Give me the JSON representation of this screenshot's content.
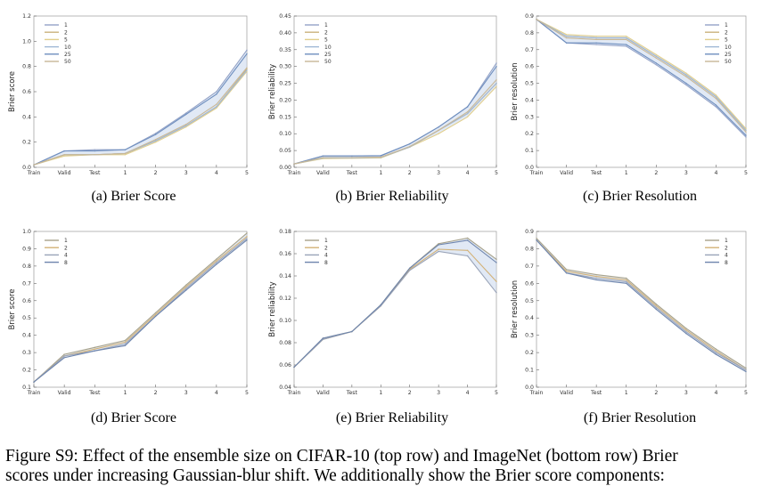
{
  "figure_caption": {
    "line1": "Figure S9: Effect of the ensemble size on CIFAR-10 (top row) and ImageNet (bottom row) Brier",
    "line2": "scores under increasing Gaussian-blur shift.  We additionally show the Brier score components:"
  },
  "colors": {
    "series_cifar": [
      "#94a3c7",
      "#cbb27e",
      "#e2cf8c",
      "#9fb8d6",
      "#6f8fbf",
      "#c8b796"
    ],
    "series_imagenet": [
      "#a7a28b",
      "#d3b277",
      "#9aa4b8",
      "#6e85ad"
    ],
    "axis": "#333333",
    "band": "#c9d7ec"
  },
  "chart_data": [
    {
      "panel": "a",
      "type": "line",
      "caption": "(a)  Brier Score",
      "xlabel": "",
      "ylabel": "Brier score",
      "x": [
        "Train",
        "Valid",
        "Test",
        "1",
        "2",
        "3",
        "4",
        "5"
      ],
      "ylim": [
        0,
        1.2
      ],
      "yticks": [
        "0.0",
        "0.2",
        "0.4",
        "0.6",
        "0.8",
        "1.0",
        "1.2"
      ],
      "legend_position": "top-left",
      "grid": false,
      "series": [
        {
          "name": "1",
          "values": [
            0.02,
            0.13,
            0.14,
            0.14,
            0.27,
            0.43,
            0.6,
            0.93
          ]
        },
        {
          "name": "2",
          "values": [
            0.02,
            0.1,
            0.1,
            0.11,
            0.21,
            0.33,
            0.48,
            0.78
          ]
        },
        {
          "name": "5",
          "values": [
            0.02,
            0.09,
            0.1,
            0.1,
            0.2,
            0.32,
            0.47,
            0.76
          ]
        },
        {
          "name": "10",
          "values": [
            0.02,
            0.1,
            0.1,
            0.11,
            0.21,
            0.33,
            0.48,
            0.77
          ]
        },
        {
          "name": "25",
          "values": [
            0.02,
            0.13,
            0.13,
            0.14,
            0.26,
            0.42,
            0.58,
            0.9
          ]
        },
        {
          "name": "50",
          "values": [
            0.02,
            0.1,
            0.1,
            0.11,
            0.22,
            0.34,
            0.5,
            0.79
          ]
        }
      ]
    },
    {
      "panel": "b",
      "type": "line",
      "caption": "(b)  Brier Reliability",
      "xlabel": "",
      "ylabel": "Brier reliability",
      "x": [
        "Train",
        "Valid",
        "Test",
        "1",
        "2",
        "3",
        "4",
        "5"
      ],
      "ylim": [
        0,
        0.45
      ],
      "yticks": [
        "0.00",
        "0.05",
        "0.10",
        "0.15",
        "0.20",
        "0.25",
        "0.30",
        "0.35",
        "0.40",
        "0.45"
      ],
      "legend_position": "top-left",
      "grid": false,
      "series": [
        {
          "name": "1",
          "values": [
            0.01,
            0.034,
            0.034,
            0.034,
            0.07,
            0.12,
            0.18,
            0.31
          ]
        },
        {
          "name": "2",
          "values": [
            0.01,
            0.028,
            0.029,
            0.03,
            0.06,
            0.11,
            0.16,
            0.25
          ]
        },
        {
          "name": "5",
          "values": [
            0.01,
            0.026,
            0.027,
            0.028,
            0.06,
            0.1,
            0.15,
            0.24
          ]
        },
        {
          "name": "10",
          "values": [
            0.01,
            0.028,
            0.028,
            0.029,
            0.06,
            0.11,
            0.16,
            0.25
          ]
        },
        {
          "name": "25",
          "values": [
            0.01,
            0.034,
            0.034,
            0.035,
            0.07,
            0.12,
            0.18,
            0.3
          ]
        },
        {
          "name": "50",
          "values": [
            0.01,
            0.029,
            0.029,
            0.03,
            0.062,
            0.11,
            0.165,
            0.26
          ]
        }
      ]
    },
    {
      "panel": "c",
      "type": "line",
      "caption": "(c)  Brier Resolution",
      "xlabel": "",
      "ylabel": "Brier resolution",
      "x": [
        "Train",
        "Valid",
        "Test",
        "1",
        "2",
        "3",
        "4",
        "5"
      ],
      "ylim": [
        0,
        0.9
      ],
      "yticks": [
        "0.0",
        "0.1",
        "0.2",
        "0.3",
        "0.4",
        "0.5",
        "0.6",
        "0.7",
        "0.8",
        "0.9"
      ],
      "legend_position": "top-right",
      "grid": false,
      "series": [
        {
          "name": "1",
          "values": [
            0.88,
            0.74,
            0.73,
            0.72,
            0.61,
            0.49,
            0.36,
            0.18
          ]
        },
        {
          "name": "2",
          "values": [
            0.88,
            0.78,
            0.77,
            0.77,
            0.66,
            0.55,
            0.42,
            0.22
          ]
        },
        {
          "name": "5",
          "values": [
            0.88,
            0.79,
            0.78,
            0.78,
            0.67,
            0.56,
            0.43,
            0.23
          ]
        },
        {
          "name": "10",
          "values": [
            0.88,
            0.78,
            0.77,
            0.77,
            0.66,
            0.55,
            0.42,
            0.22
          ]
        },
        {
          "name": "25",
          "values": [
            0.88,
            0.74,
            0.74,
            0.73,
            0.62,
            0.5,
            0.37,
            0.19
          ]
        },
        {
          "name": "50",
          "values": [
            0.88,
            0.77,
            0.76,
            0.76,
            0.65,
            0.54,
            0.41,
            0.21
          ]
        }
      ]
    },
    {
      "panel": "d",
      "type": "line",
      "caption": "(d)  Brier Score",
      "xlabel": "",
      "ylabel": "Brier score",
      "x": [
        "Train",
        "Valid",
        "Test",
        "1",
        "2",
        "3",
        "4",
        "5"
      ],
      "ylim": [
        0.1,
        1.0
      ],
      "yticks": [
        "0.1",
        "0.2",
        "0.3",
        "0.4",
        "0.5",
        "0.6",
        "0.7",
        "0.8",
        "0.9",
        "1.0"
      ],
      "legend_position": "top-left",
      "grid": false,
      "series": [
        {
          "name": "1",
          "values": [
            0.13,
            0.29,
            0.33,
            0.37,
            0.53,
            0.69,
            0.84,
            0.99
          ]
        },
        {
          "name": "2",
          "values": [
            0.13,
            0.28,
            0.32,
            0.36,
            0.52,
            0.68,
            0.83,
            0.97
          ]
        },
        {
          "name": "4",
          "values": [
            0.13,
            0.28,
            0.31,
            0.35,
            0.51,
            0.67,
            0.82,
            0.96
          ]
        },
        {
          "name": "8",
          "values": [
            0.13,
            0.27,
            0.31,
            0.34,
            0.51,
            0.66,
            0.81,
            0.95
          ]
        }
      ]
    },
    {
      "panel": "e",
      "type": "line",
      "caption": "(e)  Brier Reliability",
      "xlabel": "",
      "ylabel": "Brier reliability",
      "x": [
        "Train",
        "Valid",
        "Test",
        "1",
        "2",
        "3",
        "4",
        "5"
      ],
      "ylim": [
        0.04,
        0.18
      ],
      "yticks": [
        "0.04",
        "0.06",
        "0.08",
        "0.10",
        "0.12",
        "0.14",
        "0.16",
        "0.18"
      ],
      "legend_position": "top-left",
      "grid": false,
      "series": [
        {
          "name": "1",
          "values": [
            0.058,
            0.084,
            0.09,
            0.114,
            0.147,
            0.169,
            0.174,
            0.155
          ]
        },
        {
          "name": "2",
          "values": [
            0.058,
            0.083,
            0.09,
            0.113,
            0.146,
            0.164,
            0.163,
            0.135
          ]
        },
        {
          "name": "4",
          "values": [
            0.058,
            0.083,
            0.09,
            0.113,
            0.145,
            0.162,
            0.158,
            0.125
          ]
        },
        {
          "name": "8",
          "values": [
            0.058,
            0.084,
            0.09,
            0.114,
            0.147,
            0.168,
            0.172,
            0.152
          ]
        }
      ]
    },
    {
      "panel": "f",
      "type": "line",
      "caption": "(f)  Brier Resolution",
      "xlabel": "",
      "ylabel": "Brier resolution",
      "x": [
        "Train",
        "Valid",
        "Test",
        "1",
        "2",
        "3",
        "4",
        "5"
      ],
      "ylim": [
        0,
        0.9
      ],
      "yticks": [
        "0.0",
        "0.1",
        "0.2",
        "0.3",
        "0.4",
        "0.5",
        "0.6",
        "0.7",
        "0.8",
        "0.9"
      ],
      "legend_position": "top-right",
      "grid": false,
      "series": [
        {
          "name": "1",
          "values": [
            0.86,
            0.68,
            0.65,
            0.63,
            0.48,
            0.34,
            0.22,
            0.11
          ]
        },
        {
          "name": "2",
          "values": [
            0.85,
            0.67,
            0.64,
            0.62,
            0.47,
            0.33,
            0.21,
            0.1
          ]
        },
        {
          "name": "4",
          "values": [
            0.85,
            0.66,
            0.63,
            0.61,
            0.46,
            0.32,
            0.2,
            0.1
          ]
        },
        {
          "name": "8",
          "values": [
            0.85,
            0.66,
            0.62,
            0.6,
            0.45,
            0.31,
            0.19,
            0.09
          ]
        }
      ]
    }
  ]
}
